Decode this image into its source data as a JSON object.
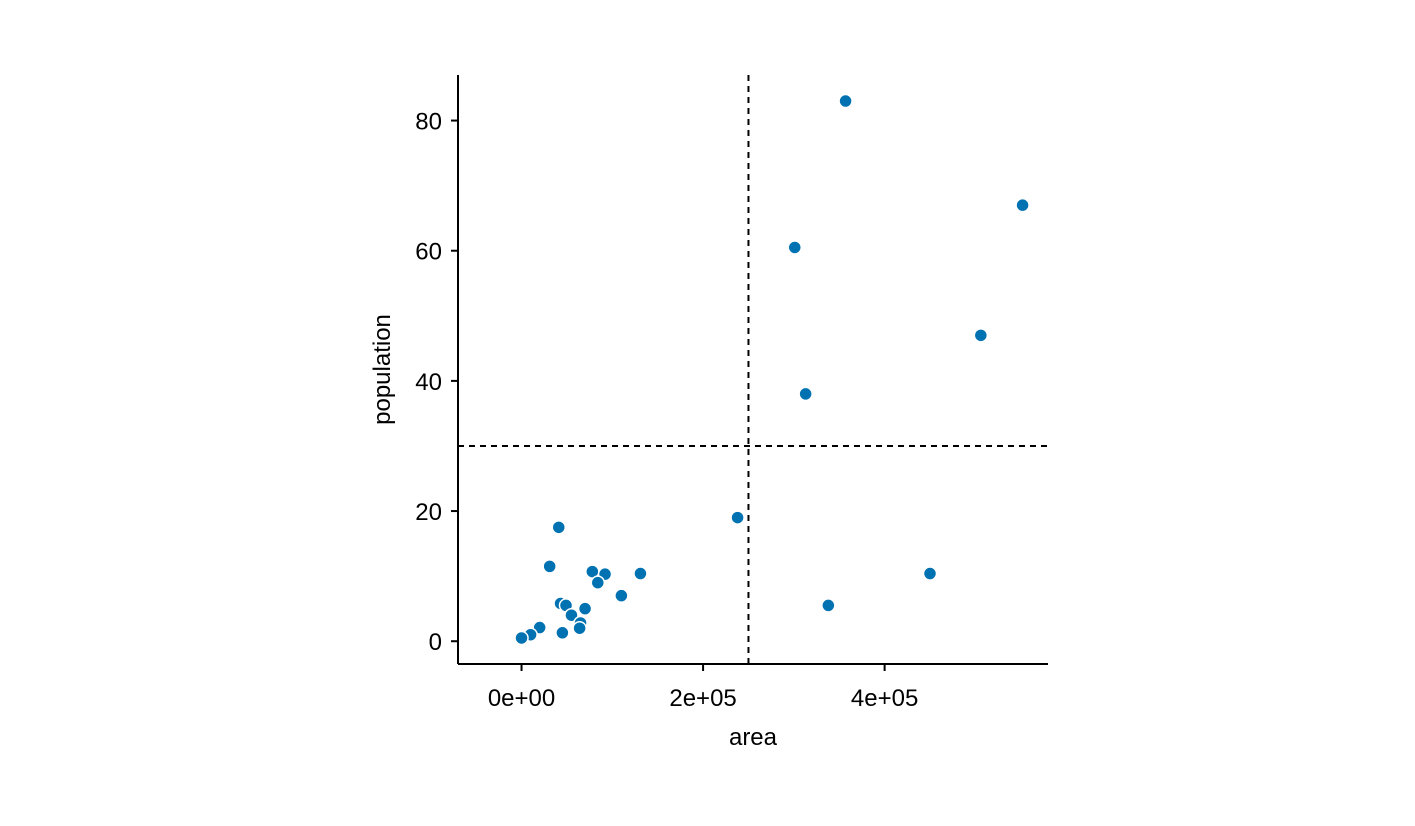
{
  "chart_data": {
    "type": "scatter",
    "title": "",
    "xlabel": "area",
    "ylabel": "population",
    "xlim": [
      -70000,
      580000
    ],
    "ylim": [
      -3.5,
      87
    ],
    "x_ticks": [
      {
        "value": 0,
        "label": "0e+00"
      },
      {
        "value": 200000,
        "label": "2e+05"
      },
      {
        "value": 400000,
        "label": "4e+05"
      }
    ],
    "y_ticks": [
      {
        "value": 0,
        "label": "0"
      },
      {
        "value": 20,
        "label": "20"
      },
      {
        "value": 40,
        "label": "40"
      },
      {
        "value": 60,
        "label": "60"
      },
      {
        "value": 80,
        "label": "80"
      }
    ],
    "reference_lines": {
      "vertical_x": 250000,
      "horizontal_y": 30
    },
    "grid": false,
    "legend": "none",
    "point_color": "#0072B2",
    "point_stroke": "#ffffff",
    "line_color": "#000000",
    "points": [
      {
        "x": 357000,
        "y": 83
      },
      {
        "x": 552000,
        "y": 67
      },
      {
        "x": 301000,
        "y": 60.5
      },
      {
        "x": 506000,
        "y": 47
      },
      {
        "x": 313000,
        "y": 38
      },
      {
        "x": 238000,
        "y": 19
      },
      {
        "x": 41000,
        "y": 17.5
      },
      {
        "x": 31000,
        "y": 11.5
      },
      {
        "x": 78000,
        "y": 10.7
      },
      {
        "x": 92000,
        "y": 10.3
      },
      {
        "x": 131000,
        "y": 10.4
      },
      {
        "x": 450000,
        "y": 10.4
      },
      {
        "x": 84000,
        "y": 9
      },
      {
        "x": 110000,
        "y": 7
      },
      {
        "x": 43000,
        "y": 5.8
      },
      {
        "x": 49000,
        "y": 5.5
      },
      {
        "x": 70000,
        "y": 5
      },
      {
        "x": 338000,
        "y": 5.5
      },
      {
        "x": 55000,
        "y": 4
      },
      {
        "x": 65000,
        "y": 2.8
      },
      {
        "x": 64000,
        "y": 2
      },
      {
        "x": 20000,
        "y": 2.1
      },
      {
        "x": 45000,
        "y": 1.3
      },
      {
        "x": 10000,
        "y": 1
      },
      {
        "x": 0,
        "y": 0.5
      }
    ]
  }
}
